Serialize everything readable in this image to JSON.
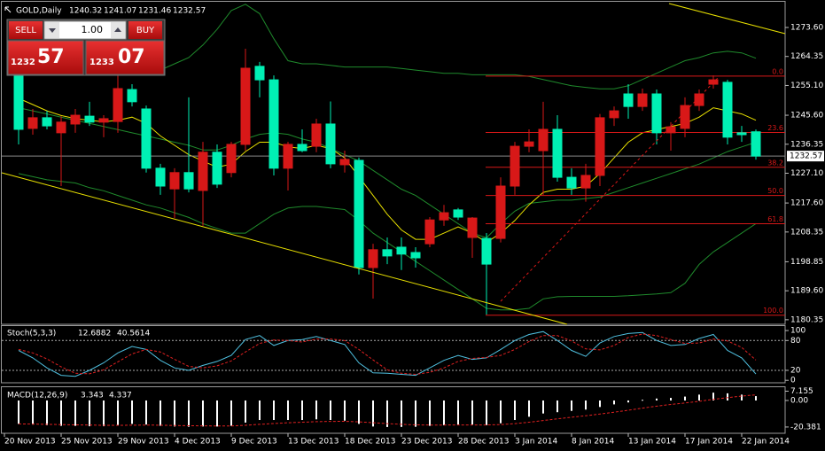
{
  "chart_data": {
    "type": "candlestick",
    "title": "GOLD,Daily",
    "categories": [
      "20 Nov 2013",
      null,
      null,
      null,
      "25 Nov 2013",
      null,
      null,
      null,
      "29 Nov 2013",
      null,
      null,
      null,
      "4 Dec 2013",
      null,
      null,
      null,
      "9 Dec 2013",
      null,
      null,
      null,
      "13 Dec 2013",
      null,
      null,
      null,
      "18 Dec 2013",
      null,
      null,
      null,
      "23 Dec 2013",
      null,
      null,
      null,
      "28 Dec 2013",
      null,
      null,
      null,
      "3 Jan 2014",
      null,
      null,
      null,
      "8 Jan 2014",
      null,
      null,
      null,
      "13 Jan 2014",
      null,
      null,
      null,
      "17 Jan 2014",
      null,
      null,
      null,
      "22 Jan 2014"
    ],
    "open": [
      1258.9,
      1241.4,
      1244.8,
      1240.0,
      1242.8,
      1245.3,
      1243.4,
      1243.6,
      1253.8,
      1247.6,
      1228.7,
      1222.1,
      1227.3,
      1221.6,
      1233.8,
      1227.3,
      1236.3,
      1261.2,
      1256.9,
      1228.7,
      1236.3,
      1235.7,
      1242.8,
      1229.8,
      1231.2,
      1197.0,
      1202.7,
      1203.5,
      1201.8,
      1204.6,
      1212.2,
      1215.4,
      1206.6,
      1206.3,
      1206.3,
      1223.0,
      1235.7,
      1234.3,
      1241.1,
      1225.8,
      1222.4,
      1226.4,
      1244.8,
      1252.4,
      1248.4,
      1252.4,
      1240.0,
      1241.4,
      1248.7,
      1255.5,
      1256.1,
      1240.0,
      1240.32
    ],
    "high": [
      1260.6,
      1247.6,
      1247.0,
      1245.3,
      1247.6,
      1249.9,
      1245.6,
      1258.3,
      1255.5,
      1248.7,
      1230.1,
      1228.7,
      1251.3,
      1237.1,
      1236.3,
      1237.1,
      1266.8,
      1262.6,
      1258.3,
      1237.1,
      1241.1,
      1244.5,
      1250.0,
      1234.3,
      1232.1,
      1204.6,
      1206.6,
      1206.6,
      1203.5,
      1213.1,
      1217.0,
      1216.0,
      1213.1,
      1208.0,
      1225.8,
      1237.1,
      1241.1,
      1249.9,
      1245.6,
      1228.7,
      1230.1,
      1246.0,
      1248.4,
      1255.5,
      1254.1,
      1253.8,
      1243.4,
      1251.3,
      1253.8,
      1258.3,
      1256.9,
      1242.2,
      1241.07
    ],
    "low": [
      1236.3,
      1239.4,
      1241.1,
      1223.0,
      1240.0,
      1242.2,
      1238.6,
      1240.0,
      1248.4,
      1227.3,
      1220.2,
      1212.8,
      1221.0,
      1210.3,
      1222.4,
      1225.8,
      1234.3,
      1251.3,
      1226.4,
      1221.6,
      1233.8,
      1233.8,
      1228.7,
      1227.3,
      1194.8,
      1187.1,
      1198.1,
      1196.2,
      1197.0,
      1203.5,
      1210.3,
      1212.2,
      1200.1,
      1182.0,
      1205.0,
      1220.2,
      1233.8,
      1220.2,
      1224.4,
      1220.2,
      1218.0,
      1223.0,
      1242.2,
      1244.5,
      1247.0,
      1236.3,
      1234.3,
      1238.6,
      1247.0,
      1254.1,
      1236.3,
      1237.1,
      1231.46
    ],
    "close": [
      1241.1,
      1244.8,
      1242.2,
      1243.4,
      1245.6,
      1243.4,
      1244.5,
      1254.1,
      1249.9,
      1228.7,
      1223.0,
      1227.3,
      1222.1,
      1233.8,
      1223.6,
      1236.3,
      1260.6,
      1256.9,
      1228.7,
      1236.3,
      1234.3,
      1242.8,
      1230.1,
      1231.5,
      1197.0,
      1202.7,
      1200.7,
      1201.3,
      1200.1,
      1212.2,
      1214.5,
      1213.1,
      1212.8,
      1198.1,
      1223.0,
      1235.7,
      1237.1,
      1241.1,
      1225.8,
      1222.4,
      1226.4,
      1244.8,
      1247.0,
      1248.4,
      1252.4,
      1240.0,
      1241.9,
      1248.7,
      1252.4,
      1256.9,
      1238.6,
      1239.4,
      1232.57
    ],
    "up_color": "#d81818",
    "down_color": "#00f0b4",
    "series": [
      {
        "color": "#1f8a2c",
        "values": [
          1266,
          1265,
          1264,
          1263,
          1262,
          1261,
          1260,
          1259.5,
          1259,
          1259,
          1260,
          1262,
          1264,
          1268,
          1273,
          1279,
          1281,
          1278,
          1270,
          1263,
          1262,
          1262,
          1261.5,
          1261,
          1261,
          1261,
          1261,
          1260.5,
          1260,
          1259.5,
          1259,
          1259,
          1258.5,
          1258.5,
          1258.5,
          1258.5,
          1258,
          1257,
          1256,
          1255,
          1254.5,
          1254,
          1254,
          1255,
          1257,
          1259,
          1261,
          1263,
          1264,
          1265.5,
          1266,
          1265.5,
          1263.8
        ]
      },
      {
        "color": "#1f8a2c",
        "values": [
          1248,
          1247,
          1246,
          1245,
          1244,
          1243,
          1242,
          1241,
          1240,
          1239,
          1238,
          1237,
          1236,
          1234.5,
          1234.5,
          1236,
          1238,
          1239.5,
          1240,
          1239.5,
          1238,
          1237,
          1235,
          1233,
          1231,
          1228,
          1225,
          1222,
          1220,
          1217,
          1214,
          1211,
          1208,
          1206.5,
          1211,
          1215,
          1217.5,
          1218,
          1218.5,
          1218.5,
          1219,
          1219.5,
          1221,
          1222.5,
          1224,
          1225.5,
          1227,
          1228.5,
          1230,
          1232,
          1234,
          1235.5,
          1237
        ]
      },
      {
        "color": "#1f8a2c",
        "values": [
          1227,
          1226,
          1225,
          1224.5,
          1224,
          1222.5,
          1221.5,
          1220,
          1218.5,
          1217,
          1216,
          1214.5,
          1213,
          1211,
          1209.5,
          1208,
          1208,
          1211,
          1214,
          1216,
          1216.5,
          1216.5,
          1216,
          1215.5,
          1212,
          1208,
          1205,
          1202,
          1199,
          1196,
          1193,
          1190,
          1187,
          1184,
          1183.5,
          1183.5,
          1184,
          1187,
          1187.7,
          1187.8,
          1187.8,
          1187.8,
          1187.8,
          1188,
          1188.3,
          1188.6,
          1189,
          1192,
          1198,
          1202,
          1205,
          1208,
          1211
        ]
      },
      {
        "color": "#e8e000",
        "values": [
          1251,
          1249,
          1247,
          1245.5,
          1244.5,
          1244,
          1243.5,
          1244,
          1245,
          1243,
          1239,
          1236,
          1233,
          1231,
          1229,
          1230,
          1234,
          1237,
          1237,
          1235.5,
          1235,
          1236,
          1235,
          1232,
          1226,
          1220,
          1214,
          1209,
          1206,
          1206,
          1208,
          1210,
          1208,
          1205,
          1208,
          1212,
          1217,
          1221,
          1222,
          1222,
          1223,
          1227,
          1232,
          1237,
          1240,
          1241,
          1242,
          1243,
          1245,
          1248,
          1247,
          1246,
          1244
        ]
      }
    ],
    "current_price": 1232.57,
    "fibonacci": {
      "color": "#d81818",
      "levels": [
        "0.0",
        "23.6",
        "38.2",
        "50.0",
        "61.8",
        "100.0"
      ],
      "prices": [
        1258.1,
        1240.1,
        1229.0,
        1220.0,
        1211.0,
        1181.8
      ]
    },
    "ylim": [
      1178.9,
      1281.8
    ],
    "yticks": [
      {
        "value": 1273.6,
        "label": "1273.60"
      },
      1264.35,
      {
        "value": 1255.1,
        "label": "1255.10"
      },
      {
        "value": 1245.6,
        "label": "1245.60"
      },
      1236.35,
      {
        "value": 1227.1,
        "label": "1227.10"
      },
      {
        "value": 1217.6,
        "label": "1217.60"
      },
      1208.35,
      1198.85,
      {
        "value": 1189.6,
        "label": "1189.60"
      },
      1180.35
    ],
    "stoch": {
      "type": "line",
      "title": "Stoch(5,3,3)",
      "ylim": [
        -5,
        109
      ],
      "yticks": [
        100,
        80,
        20,
        0
      ],
      "series": [
        {
          "color": "#4fc0e0",
          "values": [
            60,
            45,
            25,
            10,
            8,
            20,
            35,
            55,
            68,
            62,
            40,
            25,
            20,
            30,
            38,
            50,
            82,
            90,
            70,
            80,
            82,
            88,
            80,
            72,
            35,
            15,
            14,
            12,
            10,
            25,
            40,
            50,
            42,
            45,
            62,
            80,
            92,
            98,
            80,
            60,
            48,
            75,
            88,
            94,
            96,
            80,
            70,
            72,
            84,
            92,
            60,
            45,
            12.6882
          ]
        },
        {
          "color": "#e02020",
          "dashed": true,
          "values": [
            62,
            55,
            43,
            27,
            14,
            13,
            21,
            37,
            53,
            62,
            57,
            42,
            28,
            25,
            29,
            39,
            57,
            74,
            81,
            80,
            77,
            83,
            83,
            80,
            62,
            41,
            21,
            14,
            12,
            16,
            25,
            38,
            44,
            46,
            50,
            62,
            78,
            90,
            90,
            79,
            63,
            61,
            70,
            86,
            93,
            90,
            82,
            74,
            75,
            83,
            79,
            66,
            40.5614
          ]
        }
      ]
    },
    "macd": {
      "type": "bar",
      "title": "MACD(12,26,9)",
      "ylim": [
        -25.2,
        10.2
      ],
      "yticks": [
        7.155,
        {
          "value": 0,
          "label": "0.00"
        },
        -20.381
      ],
      "series": [
        {
          "type": "bar",
          "color": "#ffffff",
          "values": [
            -18,
            -18.5,
            -19,
            -19.5,
            -19.5,
            -19.8,
            -19.8,
            -19,
            -18,
            -18.5,
            -19.5,
            -20,
            -20.2,
            -20,
            -20,
            -19.5,
            -17,
            -15,
            -15,
            -15,
            -15,
            -14.5,
            -15,
            -15.5,
            -18,
            -20,
            -20.381,
            -20.3,
            -20.2,
            -19.5,
            -19,
            -18.5,
            -18.5,
            -19,
            -17.5,
            -15,
            -12.5,
            -10,
            -9,
            -8,
            -7,
            -5,
            -3,
            -1.5,
            0.5,
            1.5,
            2,
            3,
            4.5,
            6,
            5.5,
            4.5,
            3.343
          ]
        },
        {
          "type": "line",
          "color": "#e02020",
          "dashed": true,
          "values": [
            -18,
            -18.1,
            -18.3,
            -18.5,
            -18.7,
            -18.9,
            -19.1,
            -19.1,
            -19,
            -18.9,
            -19,
            -19.2,
            -19.4,
            -19.5,
            -19.6,
            -19.6,
            -19.1,
            -18.3,
            -17.7,
            -17.1,
            -16.7,
            -16.3,
            -16.1,
            -16,
            -16.4,
            -17.1,
            -17.8,
            -18.3,
            -18.7,
            -18.9,
            -18.9,
            -18.8,
            -18.8,
            -18.8,
            -18.5,
            -17.8,
            -16.7,
            -15.4,
            -14.1,
            -12.9,
            -11.7,
            -10.4,
            -9,
            -7.5,
            -5.9,
            -4.4,
            -3.1,
            -1.9,
            -0.6,
            0.9,
            2.2,
            3.4,
            4.337
          ]
        }
      ]
    }
  },
  "trade_panel": {
    "sell": "SELL",
    "buy": "BUY",
    "lot": "1.00",
    "bid": {
      "big": "1232",
      "pips": "57"
    },
    "ask": {
      "big": "1233",
      "pips": "07"
    }
  }
}
